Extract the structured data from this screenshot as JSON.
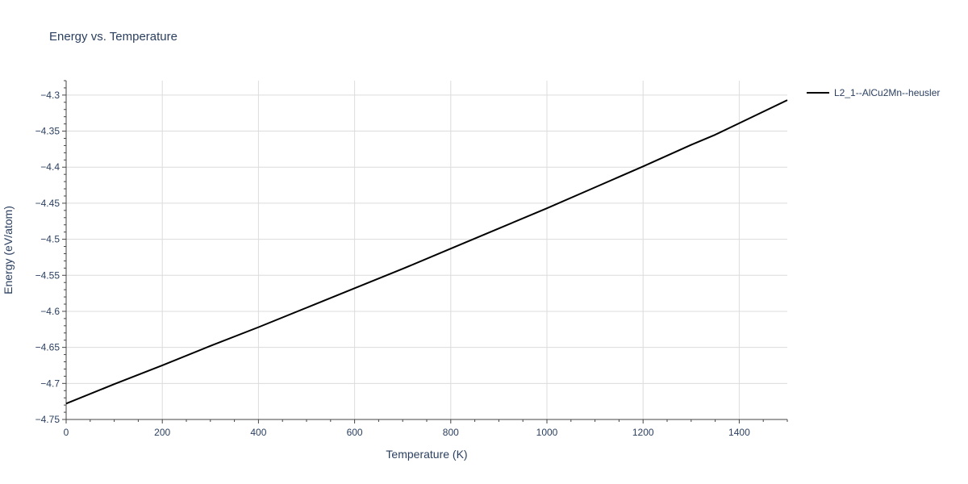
{
  "chart_data": {
    "type": "line",
    "title": "Energy vs. Temperature",
    "xlabel": "Temperature (K)",
    "ylabel": "Energy (eV/atom)",
    "xlim": [
      0,
      1500
    ],
    "ylim": [
      -4.75,
      -4.28
    ],
    "x_ticks": [
      0,
      200,
      400,
      600,
      800,
      1000,
      1200,
      1400
    ],
    "x_tick_labels": [
      "0",
      "200",
      "400",
      "600",
      "800",
      "1000",
      "1200",
      "1400"
    ],
    "y_ticks": [
      -4.75,
      -4.7,
      -4.65,
      -4.6,
      -4.55,
      -4.5,
      -4.45,
      -4.4,
      -4.35,
      -4.3
    ],
    "y_tick_labels": [
      "−4.75",
      "−4.7",
      "−4.65",
      "−4.6",
      "−4.55",
      "−4.5",
      "−4.45",
      "−4.4",
      "−4.35",
      "−4.3"
    ],
    "grid": true,
    "legend_position": "top-right outside",
    "series": [
      {
        "name": "L2_1--AlCu2Mn--heusler",
        "color": "#000000",
        "x": [
          0,
          100,
          200,
          300,
          400,
          500,
          600,
          700,
          800,
          900,
          1000,
          1100,
          1200,
          1300,
          1350,
          1400,
          1500
        ],
        "y": [
          -4.728,
          -4.701,
          -4.675,
          -4.648,
          -4.622,
          -4.595,
          -4.568,
          -4.541,
          -4.513,
          -4.485,
          -4.457,
          -4.428,
          -4.399,
          -4.369,
          -4.355,
          -4.339,
          -4.307
        ]
      }
    ]
  }
}
